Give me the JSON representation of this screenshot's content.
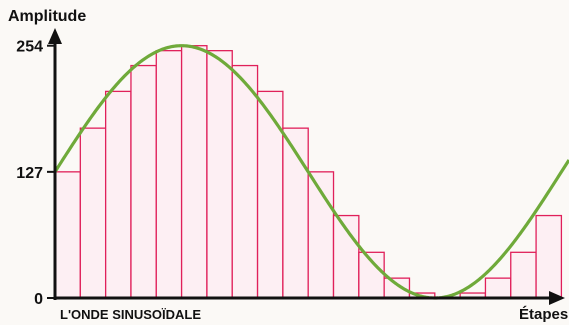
{
  "chart_data": {
    "type": "line",
    "ylabel": "Amplitude",
    "xlabel": "Étapes",
    "caption": "L'ONDE SINUSOÏDALE",
    "yticks": [
      {
        "value": 0,
        "label": "0"
      },
      {
        "value": 127,
        "label": "127"
      },
      {
        "value": 254,
        "label": "254"
      }
    ],
    "ylim": [
      0,
      300
    ],
    "xlim": [
      0,
      20.3
    ],
    "grid": false,
    "series": [
      {
        "type": "step",
        "values": [
          127,
          171,
          208,
          234,
          249,
          254,
          249,
          234,
          208,
          171,
          127,
          83,
          46,
          20,
          5,
          0,
          5,
          20,
          46,
          83
        ],
        "color": "#e0205a"
      },
      {
        "type": "line",
        "function": "sine",
        "offset": 127,
        "amplitude": 127,
        "period": 20,
        "color": "#6faa3a"
      }
    ]
  }
}
